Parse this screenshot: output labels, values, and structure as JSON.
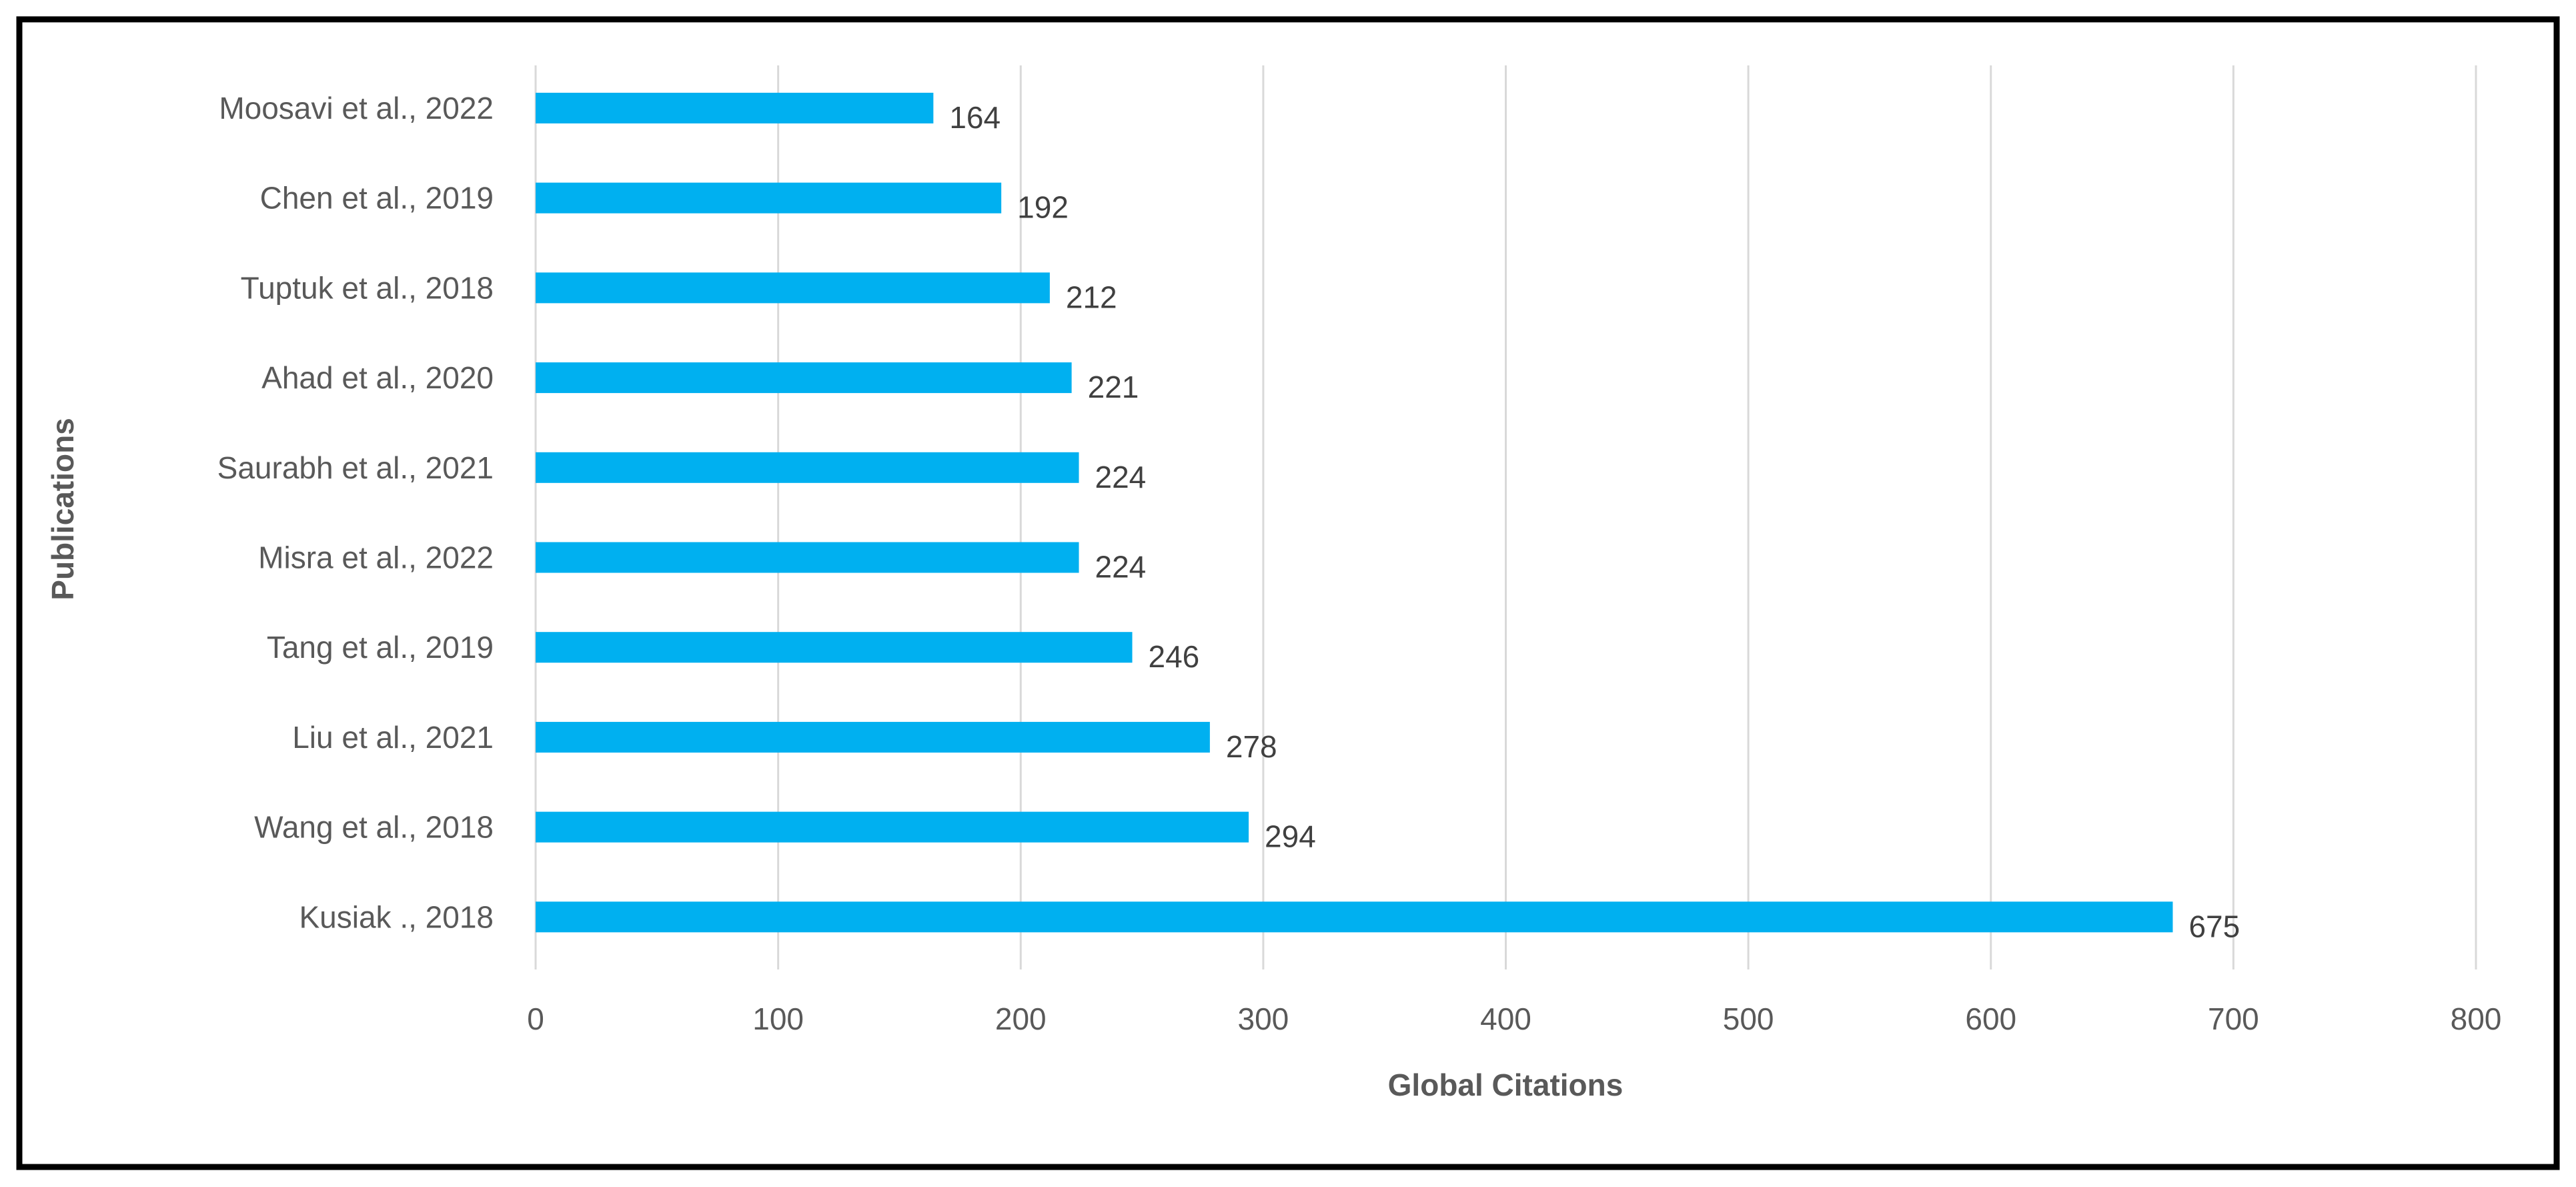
{
  "chart_data": {
    "type": "bar",
    "orientation": "horizontal",
    "categories": [
      "Moosavi et al., 2022",
      "Chen et al., 2019",
      "Tuptuk et al., 2018",
      "Ahad et al., 2020",
      "Saurabh et al., 2021",
      "Misra et al., 2022",
      "Tang et al., 2019",
      "Liu et al., 2021",
      "Wang et al., 2018",
      "Kusiak ., 2018"
    ],
    "values": [
      164,
      192,
      212,
      221,
      224,
      224,
      246,
      278,
      294,
      675
    ],
    "data_labels": [
      "164",
      "192",
      "212",
      "221",
      "224",
      "224",
      "246",
      "278",
      "294",
      "675"
    ],
    "xlabel": "Global Citations",
    "ylabel": "Publications",
    "xlim": [
      0,
      800
    ],
    "xticks": [
      "0",
      "100",
      "200",
      "300",
      "400",
      "500",
      "600",
      "700",
      "800"
    ],
    "grid": "vertical",
    "bar_color": "#00B0F0",
    "gridline_color": "#D9D9D9",
    "border_color": "#000000"
  }
}
